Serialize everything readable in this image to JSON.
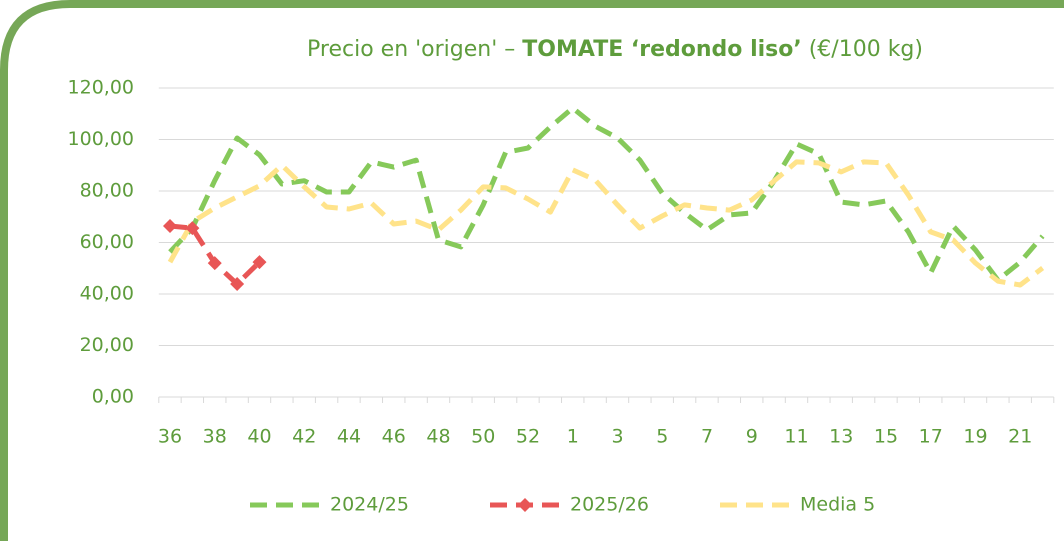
{
  "chart_data": {
    "type": "line",
    "title": [
      "Precio en 'origen' – ",
      "TOMATE ‘redondo liso’",
      " (€/100 kg)"
    ],
    "categories": [
      "36",
      null,
      "38",
      null,
      "40",
      null,
      "42",
      null,
      "44",
      null,
      "46",
      null,
      "48",
      null,
      "50",
      null,
      "52",
      null,
      "1",
      null,
      "3",
      null,
      "5",
      null,
      "7",
      null,
      "9",
      null,
      "11",
      null,
      "13",
      null,
      "15",
      null,
      "17",
      null,
      "19",
      null,
      "21",
      null
    ],
    "series": [
      {
        "name": "2024/25",
        "color": "#86c95a",
        "marker": false,
        "values": [
          56.3,
          65.6,
          84,
          100.6,
          94,
          82.7,
          84,
          79.6,
          79.6,
          91.3,
          89.3,
          92,
          61,
          58.3,
          74.6,
          95,
          96.7,
          104.9,
          112.2,
          105.2,
          100.6,
          92,
          79.2,
          71.5,
          64.9,
          70.7,
          71.5,
          83.9,
          98.3,
          94.4,
          75.7,
          74.6,
          76.1,
          64.1,
          48.2,
          66.4,
          57.1,
          45.4,
          52.4,
          62.5
        ]
      },
      {
        "name": "2025/26",
        "color": "#e85656",
        "marker": true,
        "values": [
          66.4,
          65.6,
          52,
          43.9,
          52.4,
          null,
          null,
          null,
          null,
          null,
          null,
          null,
          null,
          null,
          null,
          null,
          null,
          null,
          null,
          null,
          null,
          null,
          null,
          null,
          null,
          null,
          null,
          null,
          null,
          null,
          null,
          null,
          null,
          null,
          null,
          null,
          null,
          null,
          null,
          null
        ]
      },
      {
        "name": "Media 5",
        "color": "#ffe38a",
        "marker": false,
        "values": [
          52.4,
          68,
          73.4,
          77.7,
          82,
          90,
          81.6,
          73.8,
          73,
          75.3,
          67.2,
          68.3,
          64.9,
          72.6,
          81.6,
          81.2,
          76.9,
          71.8,
          88.2,
          84.3,
          74.6,
          65.6,
          70.3,
          74.6,
          73.4,
          72.6,
          76.5,
          83.9,
          91.3,
          90.9,
          87.4,
          91.3,
          90.9,
          78.4,
          64.1,
          61,
          52,
          45,
          43.5,
          50.1
        ]
      }
    ],
    "ylim": [
      0,
      120
    ],
    "yticks": [
      {
        "value": 0,
        "label": "0,00"
      },
      {
        "value": 20,
        "label": "20,00"
      },
      {
        "value": 40,
        "label": "40,00"
      },
      {
        "value": 60,
        "label": "60,00"
      },
      {
        "value": 80,
        "label": "80,00"
      },
      {
        "value": 100,
        "label": "100,00"
      },
      {
        "value": 120,
        "label": "120,00"
      }
    ],
    "grid": true
  }
}
